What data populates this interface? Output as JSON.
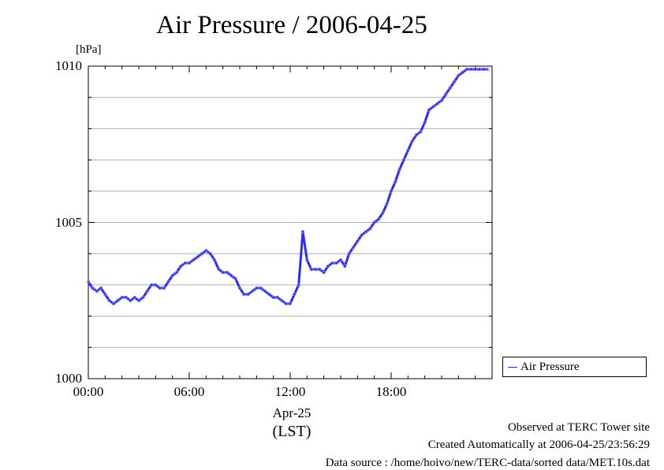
{
  "chart_data": {
    "type": "line",
    "title": "Air Pressure / 2006-04-25",
    "ylabel": "[hPa]",
    "xlabel_date": "Apr-25",
    "xlabel_zone": "(LST)",
    "ylim": [
      1000,
      1010
    ],
    "xlim": [
      0,
      24
    ],
    "yticks": [
      {
        "value": 1000,
        "label": "1000"
      },
      {
        "value": 1005,
        "label": "1005"
      },
      {
        "value": 1010,
        "label": "1010"
      }
    ],
    "xticks": [
      {
        "value": 0,
        "label": "00:00"
      },
      {
        "value": 6,
        "label": "06:00"
      },
      {
        "value": 12,
        "label": "12:00"
      },
      {
        "value": 18,
        "label": "18:00"
      }
    ],
    "grid": true,
    "legend_position": "right-bottom",
    "color": "#2a2aff",
    "series": [
      {
        "name": "Air Pressure",
        "x": [
          0.0,
          0.25,
          0.5,
          0.75,
          1.0,
          1.25,
          1.5,
          1.75,
          2.0,
          2.25,
          2.5,
          2.75,
          3.0,
          3.25,
          3.5,
          3.75,
          4.0,
          4.25,
          4.5,
          4.75,
          5.0,
          5.25,
          5.5,
          5.75,
          6.0,
          6.25,
          6.5,
          6.75,
          7.0,
          7.25,
          7.5,
          7.75,
          8.0,
          8.25,
          8.5,
          8.75,
          9.0,
          9.25,
          9.5,
          9.75,
          10.0,
          10.25,
          10.5,
          10.75,
          11.0,
          11.25,
          11.5,
          11.75,
          12.0,
          12.25,
          12.5,
          12.75,
          13.0,
          13.25,
          13.5,
          13.75,
          14.0,
          14.25,
          14.5,
          14.75,
          15.0,
          15.25,
          15.5,
          15.75,
          16.0,
          16.25,
          16.5,
          16.75,
          17.0,
          17.25,
          17.5,
          17.75,
          18.0,
          18.25,
          18.5,
          18.75,
          19.0,
          19.25,
          19.5,
          19.75,
          20.0,
          20.25,
          20.5,
          20.75,
          21.0,
          21.25,
          21.5,
          21.75,
          22.0,
          22.25,
          22.5,
          22.75,
          23.0,
          23.25,
          23.5,
          23.75
        ],
        "y": [
          1003.1,
          1002.9,
          1002.8,
          1002.9,
          1002.7,
          1002.5,
          1002.4,
          1002.5,
          1002.6,
          1002.6,
          1002.5,
          1002.6,
          1002.5,
          1002.6,
          1002.8,
          1003.0,
          1003.0,
          1002.9,
          1002.9,
          1003.1,
          1003.3,
          1003.4,
          1003.6,
          1003.7,
          1003.7,
          1003.8,
          1003.9,
          1004.0,
          1004.1,
          1004.0,
          1003.8,
          1003.5,
          1003.4,
          1003.4,
          1003.3,
          1003.2,
          1002.9,
          1002.7,
          1002.7,
          1002.8,
          1002.9,
          1002.9,
          1002.8,
          1002.7,
          1002.6,
          1002.6,
          1002.5,
          1002.4,
          1002.4,
          1002.7,
          1003.0,
          1004.7,
          1003.8,
          1003.5,
          1003.5,
          1003.5,
          1003.4,
          1003.6,
          1003.7,
          1003.7,
          1003.8,
          1003.6,
          1004.0,
          1004.2,
          1004.4,
          1004.6,
          1004.7,
          1004.8,
          1005.0,
          1005.1,
          1005.3,
          1005.6,
          1006.0,
          1006.3,
          1006.7,
          1007.0,
          1007.3,
          1007.6,
          1007.8,
          1007.9,
          1008.2,
          1008.6,
          1008.7,
          1008.8,
          1008.9,
          1009.1,
          1009.3,
          1009.5,
          1009.7,
          1009.8,
          1009.9,
          1009.9,
          1009.9,
          1009.9,
          1009.9,
          1009.9
        ]
      }
    ]
  },
  "footer": {
    "line1": "Observed at TERC Tower site",
    "line2": "Created Automatically at 2006-04-25/23:56:29",
    "line3": "Data source : /home/hoivo/new/TERC-data/sorted  data/MET.10s.dat"
  }
}
